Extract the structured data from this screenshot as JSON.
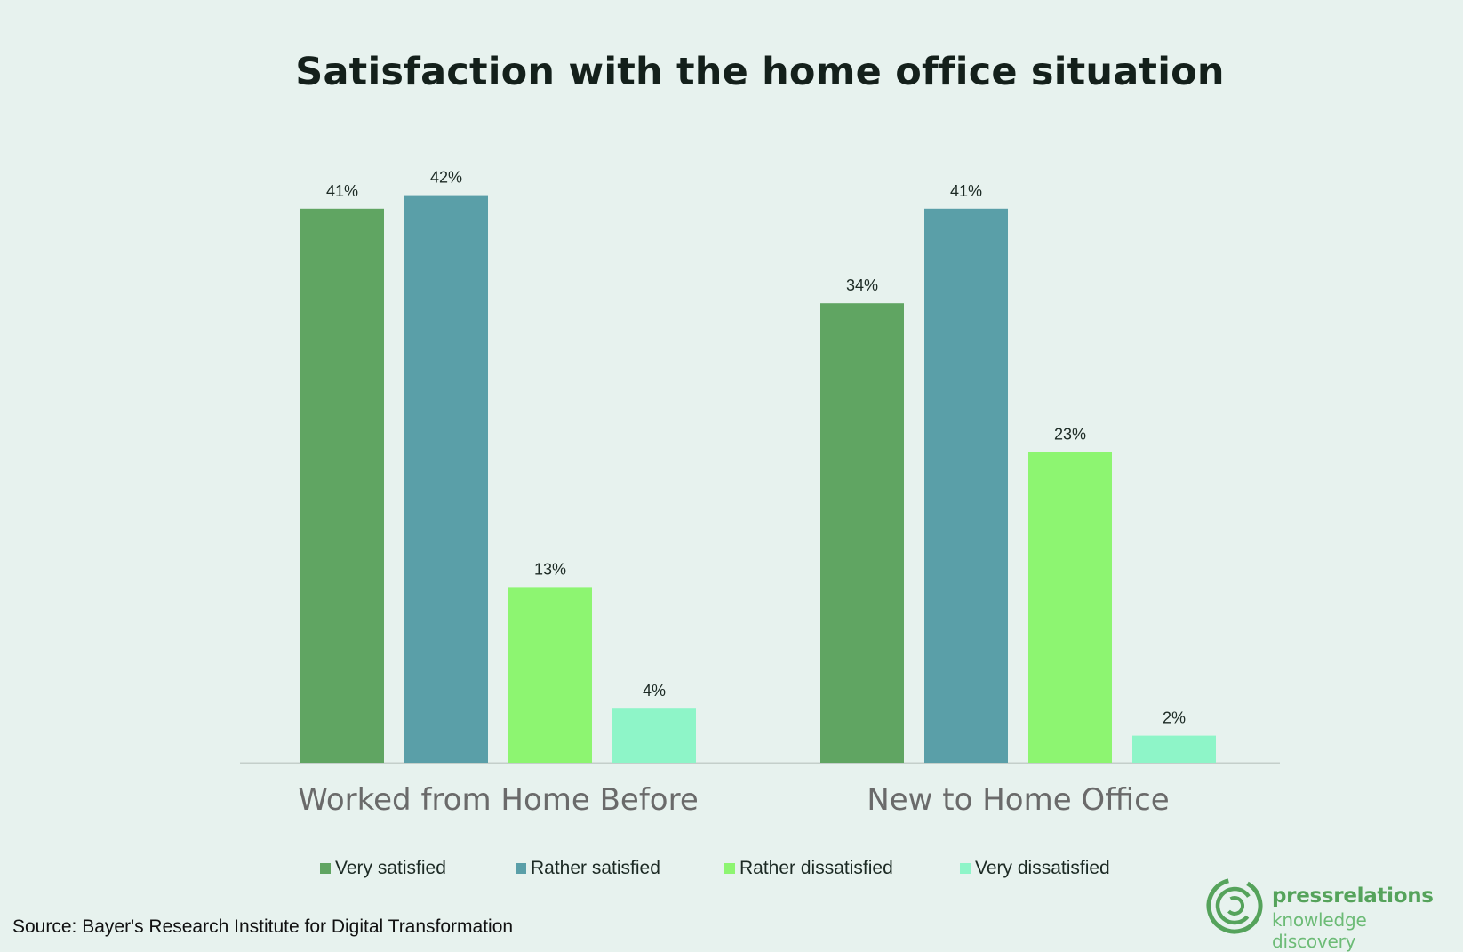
{
  "chart_data": {
    "type": "bar",
    "title": "Satisfaction with the home office situation",
    "categories": [
      "Worked from Home Before",
      "New to Home Office"
    ],
    "series": [
      {
        "name": "Very satisfied",
        "values": [
          41,
          34
        ],
        "color": "#60a562",
        "labels": [
          "41%",
          "34%"
        ]
      },
      {
        "name": "Rather satisfied",
        "values": [
          42,
          41
        ],
        "color": "#5a9fa8",
        "labels": [
          "42%",
          "41%"
        ]
      },
      {
        "name": "Rather dissatisfied",
        "values": [
          13,
          23
        ],
        "color": "#8df571",
        "labels": [
          "13%",
          "23%"
        ]
      },
      {
        "name": "Very dissatisfied",
        "values": [
          4,
          2
        ],
        "color": "#8ef5c8",
        "labels": [
          "4%",
          "2%"
        ]
      }
    ],
    "ylim": [
      0,
      42
    ],
    "grid": false,
    "legend_position": "bottom"
  },
  "source": "Source: Bayer's Research Institute for Digital Transformation",
  "brand": {
    "name": "pressrelations",
    "tagline": "knowledge discovery",
    "color": "#55a35b"
  }
}
